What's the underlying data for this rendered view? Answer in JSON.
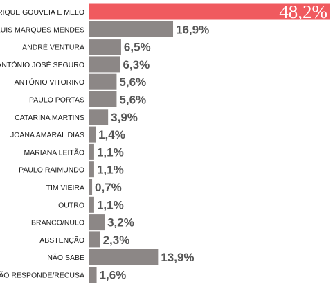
{
  "chart_data": {
    "type": "bar",
    "orientation": "horizontal",
    "title": "",
    "xlabel": "",
    "ylabel": "",
    "grid": false,
    "legend": "none",
    "xlim": [
      0,
      48.2
    ],
    "categories": [
      "HENRIQUE GOUVEIA E MELO",
      "LUIS MARQUES MENDES",
      "ANDRÉ VENTURA",
      "ANTÓNIO JOSÉ SEGURO",
      "ANTÓNIO VITORINO",
      "PAULO PORTAS",
      "CATARINA MARTINS",
      "JOANA AMARAL DIAS",
      "MARIANA LEITÃO",
      "PAULO RAIMUNDO",
      "TIM VIEIRA",
      "OUTRO",
      "BRANCO/NULO",
      "ABSTENÇÃO",
      "NÃO SABE",
      "NÃO RESPONDE/RECUSA"
    ],
    "values": [
      48.2,
      16.9,
      6.5,
      6.3,
      5.6,
      5.6,
      3.9,
      1.4,
      1.1,
      1.1,
      0.7,
      1.1,
      3.2,
      2.3,
      13.9,
      1.6
    ],
    "value_labels": [
      "48,2%",
      "16,9%",
      "6,5%",
      "6,3%",
      "5,6%",
      "5,6%",
      "3,9%",
      "1,4%",
      "1,1%",
      "1,1%",
      "0,7%",
      "1,1%",
      "3,2%",
      "2,3%",
      "13,9%",
      "1,6%"
    ],
    "colors": {
      "highlight": "#f05a5f",
      "bar": "#8c8786",
      "value_text": "#555555",
      "highlight_text": "#ffffff"
    }
  }
}
